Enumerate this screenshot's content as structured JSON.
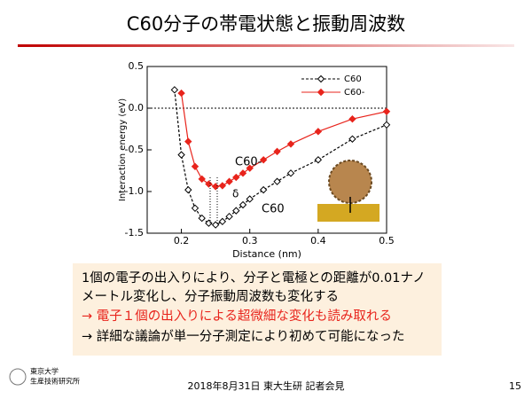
{
  "slide": {
    "title": "C60分子の帯電状態と振動周波数",
    "lines": [
      "1個の電子の出入りにより、分子と電極との距離が0.01ナノ",
      "メートル変化し、分子振動周波数も変化する",
      "→ 電子１個の出入りによる超微細な変化も読み取れる",
      "→ 詳細な議論が単一分子測定により初めて可能になった"
    ],
    "footer": "2018年8月31日 東大生研 記者会見",
    "page": "15",
    "logo": [
      "東京大学",
      "生産技術研究所"
    ]
  },
  "chart_data": {
    "type": "line",
    "xlabel": "Distance (nm)",
    "ylabel": "Interaction energy (eV)",
    "xlim": [
      0.15,
      0.5
    ],
    "xticks": [
      0.2,
      0.3,
      0.4,
      0.5
    ],
    "ylim": [
      -1.5,
      0.5
    ],
    "yticks": [
      -1.5,
      {
        "value": -1,
        "label": "-1.0"
      },
      -0.5,
      {
        "value": 0,
        "label": "0.0"
      },
      0.5
    ],
    "legend": "upper right",
    "annotations": [
      "C60-",
      "C60",
      "δ"
    ],
    "series": [
      {
        "name": "C60",
        "color": "#000000",
        "marker": "open-diamond",
        "dashed": true,
        "x": [
          0.19,
          0.2,
          0.21,
          0.22,
          0.23,
          0.24,
          0.25,
          0.26,
          0.27,
          0.28,
          0.29,
          0.3,
          0.32,
          0.34,
          0.36,
          0.4,
          0.45,
          0.5
        ],
        "values": [
          0.22,
          -0.56,
          -0.98,
          -1.2,
          -1.32,
          -1.38,
          -1.4,
          -1.36,
          -1.3,
          -1.23,
          -1.16,
          -1.09,
          -0.98,
          -0.88,
          -0.78,
          -0.62,
          -0.37,
          -0.2
        ]
      },
      {
        "name": "C60-",
        "color": "#e8241c",
        "marker": "filled-diamond",
        "dashed": false,
        "x": [
          0.2,
          0.21,
          0.22,
          0.23,
          0.24,
          0.25,
          0.26,
          0.27,
          0.28,
          0.29,
          0.3,
          0.32,
          0.34,
          0.36,
          0.4,
          0.45,
          0.5
        ],
        "values": [
          0.18,
          -0.4,
          -0.7,
          -0.85,
          -0.91,
          -0.94,
          -0.93,
          -0.88,
          -0.83,
          -0.78,
          -0.72,
          -0.62,
          -0.52,
          -0.43,
          -0.28,
          -0.13,
          -0.04
        ]
      }
    ]
  }
}
